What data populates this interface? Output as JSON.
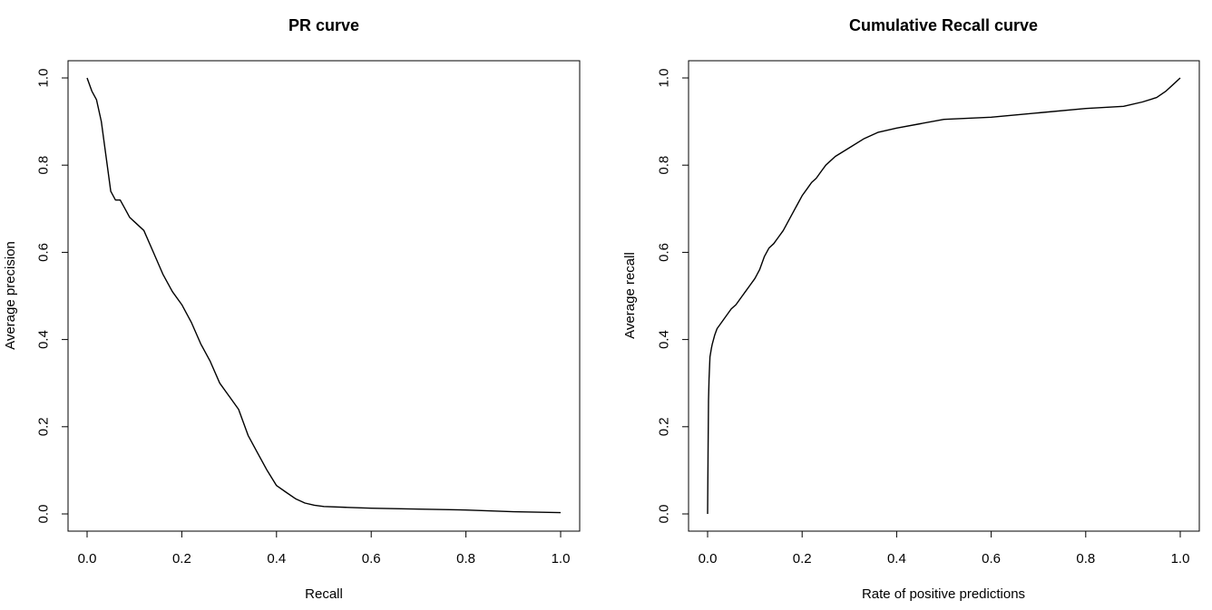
{
  "chart_data": [
    {
      "type": "line",
      "title": "PR curve",
      "xlabel": "Recall",
      "ylabel": "Average precision",
      "xlim": [
        0,
        1
      ],
      "ylim": [
        0,
        1
      ],
      "xticks": [
        "0.0",
        "0.2",
        "0.4",
        "0.6",
        "0.8",
        "1.0"
      ],
      "yticks": [
        "0.0",
        "0.2",
        "0.4",
        "0.6",
        "0.8",
        "1.0"
      ],
      "grid": false,
      "series": [
        {
          "x": [
            0.0,
            0.01,
            0.02,
            0.03,
            0.04,
            0.05,
            0.06,
            0.07,
            0.08,
            0.09,
            0.1,
            0.12,
            0.14,
            0.16,
            0.18,
            0.2,
            0.22,
            0.24,
            0.26,
            0.28,
            0.3,
            0.32,
            0.34,
            0.36,
            0.38,
            0.4,
            0.42,
            0.44,
            0.46,
            0.48,
            0.5,
            0.55,
            0.6,
            0.7,
            0.8,
            0.9,
            1.0
          ],
          "y": [
            1.0,
            0.97,
            0.95,
            0.9,
            0.82,
            0.74,
            0.72,
            0.72,
            0.7,
            0.68,
            0.67,
            0.65,
            0.6,
            0.55,
            0.51,
            0.48,
            0.44,
            0.39,
            0.35,
            0.3,
            0.27,
            0.24,
            0.18,
            0.14,
            0.1,
            0.065,
            0.05,
            0.035,
            0.025,
            0.02,
            0.017,
            0.015,
            0.013,
            0.011,
            0.009,
            0.005,
            0.003
          ]
        }
      ]
    },
    {
      "type": "line",
      "title": "Cumulative Recall curve",
      "xlabel": "Rate of positive predictions",
      "ylabel": "Average recall",
      "xlim": [
        0,
        1
      ],
      "ylim": [
        0,
        1
      ],
      "xticks": [
        "0.0",
        "0.2",
        "0.4",
        "0.6",
        "0.8",
        "1.0"
      ],
      "yticks": [
        "0.0",
        "0.2",
        "0.4",
        "0.6",
        "0.8",
        "1.0"
      ],
      "grid": false,
      "series": [
        {
          "x": [
            0.0,
            0.001,
            0.002,
            0.003,
            0.005,
            0.008,
            0.01,
            0.015,
            0.02,
            0.03,
            0.04,
            0.05,
            0.06,
            0.07,
            0.08,
            0.09,
            0.1,
            0.11,
            0.12,
            0.13,
            0.14,
            0.15,
            0.16,
            0.17,
            0.18,
            0.19,
            0.2,
            0.21,
            0.22,
            0.23,
            0.24,
            0.25,
            0.27,
            0.3,
            0.33,
            0.36,
            0.4,
            0.45,
            0.5,
            0.6,
            0.7,
            0.8,
            0.88,
            0.92,
            0.95,
            0.97,
            0.99,
            1.0
          ],
          "y": [
            0.0,
            0.14,
            0.26,
            0.31,
            0.36,
            0.38,
            0.39,
            0.41,
            0.425,
            0.44,
            0.455,
            0.47,
            0.48,
            0.495,
            0.51,
            0.525,
            0.54,
            0.56,
            0.59,
            0.61,
            0.62,
            0.635,
            0.65,
            0.67,
            0.69,
            0.71,
            0.73,
            0.745,
            0.76,
            0.77,
            0.785,
            0.8,
            0.82,
            0.84,
            0.86,
            0.875,
            0.885,
            0.895,
            0.905,
            0.91,
            0.92,
            0.93,
            0.935,
            0.945,
            0.955,
            0.97,
            0.99,
            1.0
          ]
        }
      ]
    }
  ]
}
